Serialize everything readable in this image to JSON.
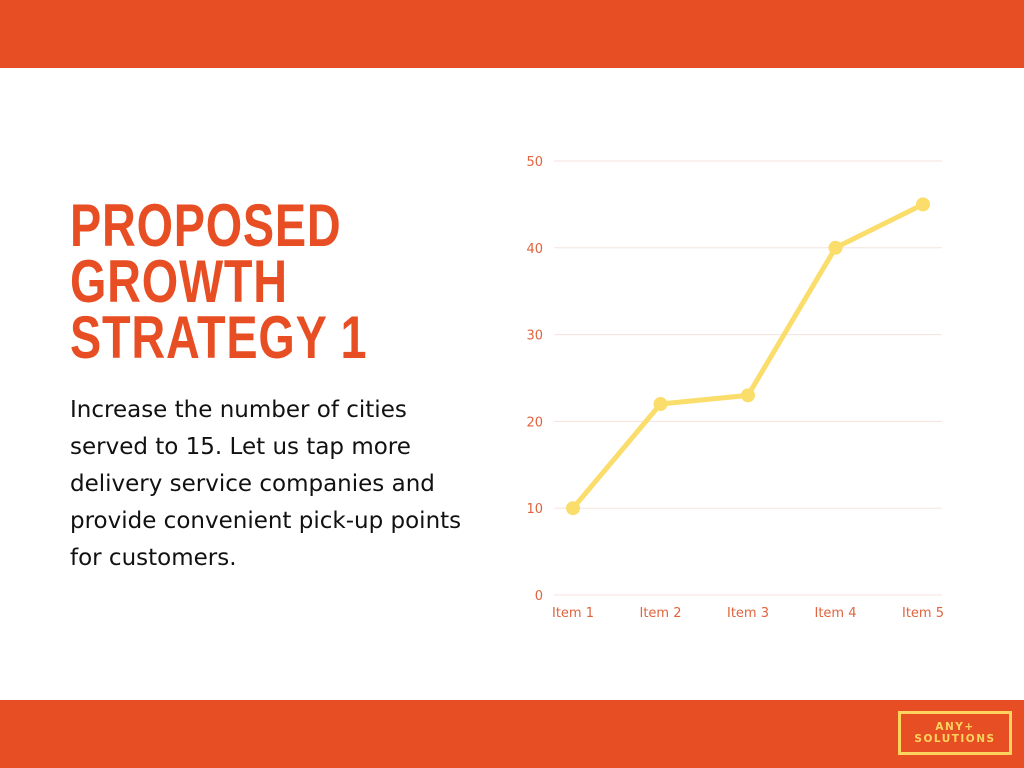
{
  "slide": {
    "title_lines": [
      "PROPOSED",
      "GROWTH",
      "STRATEGY 1"
    ],
    "body": "Increase the number of cities served to 15. Let us tap more delivery service companies and provide convenient pick-up points for customers.",
    "logo": {
      "line1": "ANY+",
      "line2": "SOLUTIONS"
    }
  },
  "colors": {
    "brand": "#e84e24",
    "series": "#fadd6a",
    "logo": "#ffd45e",
    "grid": "#f5e3dc"
  },
  "chart_data": {
    "type": "line",
    "categories": [
      "Item 1",
      "Item 2",
      "Item 3",
      "Item 4",
      "Item 5"
    ],
    "values": [
      10,
      22,
      23,
      40,
      45
    ],
    "yticks": [
      0,
      10,
      20,
      30,
      40,
      50
    ],
    "ylim": [
      0,
      50
    ],
    "grid": true,
    "legend": "none"
  }
}
